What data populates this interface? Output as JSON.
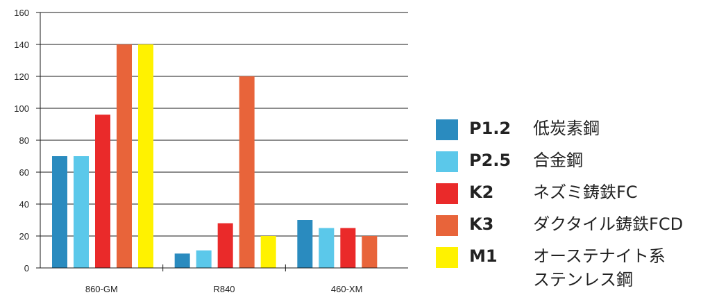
{
  "chart_data": {
    "type": "bar",
    "categories": [
      "860-GM",
      "R840",
      "460-XM"
    ],
    "ylim": [
      0,
      160
    ],
    "yticks": [
      0,
      20,
      40,
      60,
      80,
      100,
      120,
      140,
      160
    ],
    "grid": true,
    "legend_position": "right",
    "series": [
      {
        "name": "P1.2",
        "values": [
          70,
          9,
          30
        ],
        "color": "#2a8bbf"
      },
      {
        "name": "P2.5",
        "values": [
          70,
          11,
          25
        ],
        "color": "#5bc8ea"
      },
      {
        "name": "K2",
        "values": [
          96,
          28,
          25
        ],
        "color": "#ea2a2a"
      },
      {
        "name": "K3",
        "values": [
          140,
          120,
          20
        ],
        "color": "#e8643a"
      },
      {
        "name": "M1",
        "values": [
          140,
          20,
          null
        ],
        "color": "#fff200"
      }
    ]
  },
  "legend": [
    {
      "code": "P1.2",
      "name": "低炭素鋼",
      "color": "#2a8bbf"
    },
    {
      "code": "P2.5",
      "name": "合金鋼",
      "color": "#5bc8ea"
    },
    {
      "code": "K2",
      "name": "ネズミ鋳鉄FC",
      "color": "#ea2a2a"
    },
    {
      "code": "K3",
      "name": "ダクタイル鋳鉄FCD",
      "color": "#e8643a"
    },
    {
      "code": "M1",
      "name": "オーステナイト系\nステンレス鋼",
      "color": "#fff200"
    }
  ]
}
